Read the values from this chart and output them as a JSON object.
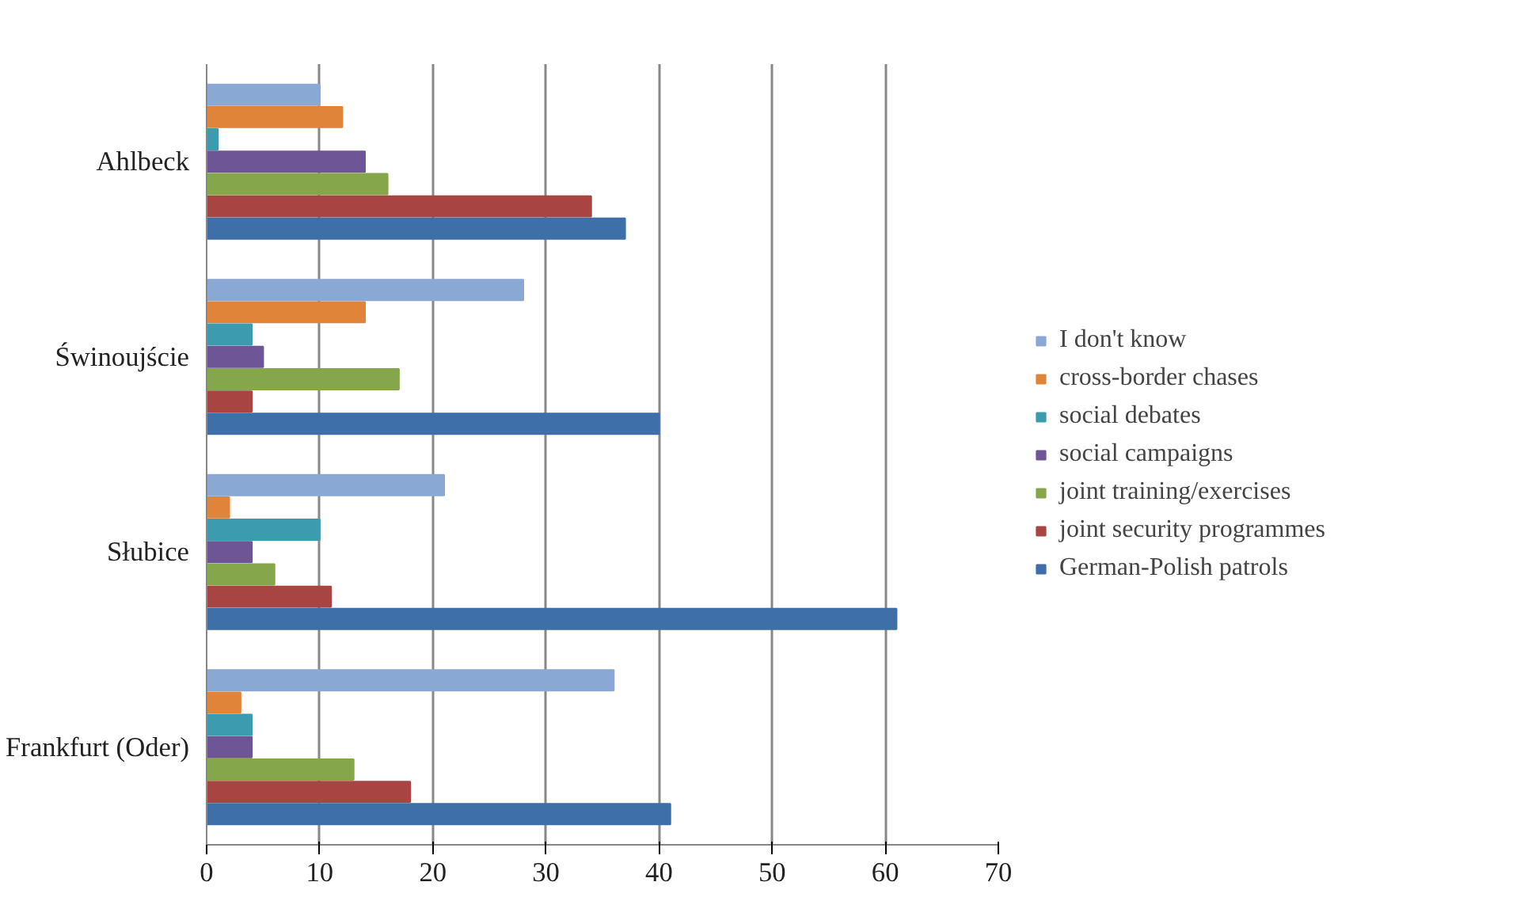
{
  "chart_data": {
    "type": "bar",
    "orientation": "horizontal",
    "categories": [
      "Ahlbeck",
      "Świnoujście",
      "Słubice",
      "Frankfurt (Oder)"
    ],
    "series": [
      {
        "name": "I don't know",
        "color": "#8aa8d4",
        "values": [
          10,
          28,
          21,
          36
        ]
      },
      {
        "name": "cross-border chases",
        "color": "#e0843a",
        "values": [
          12,
          14,
          2,
          3
        ]
      },
      {
        "name": "social debates",
        "color": "#3d9bb0",
        "values": [
          1,
          4,
          10,
          4
        ]
      },
      {
        "name": "social campaigns",
        "color": "#6e5596",
        "values": [
          14,
          5,
          4,
          4
        ]
      },
      {
        "name": "joint training/exercises",
        "color": "#86a64c",
        "values": [
          16,
          17,
          6,
          13
        ]
      },
      {
        "name": "joint security programmes",
        "color": "#a84542",
        "values": [
          34,
          4,
          11,
          18
        ]
      },
      {
        "name": "German-Polish patrols",
        "color": "#3e6fa8",
        "values": [
          37,
          40,
          61,
          41
        ]
      }
    ],
    "xlim": [
      0,
      70
    ],
    "xticks": [
      0,
      10,
      20,
      30,
      40,
      50,
      60,
      70
    ],
    "grid": "x",
    "legend": "right"
  }
}
